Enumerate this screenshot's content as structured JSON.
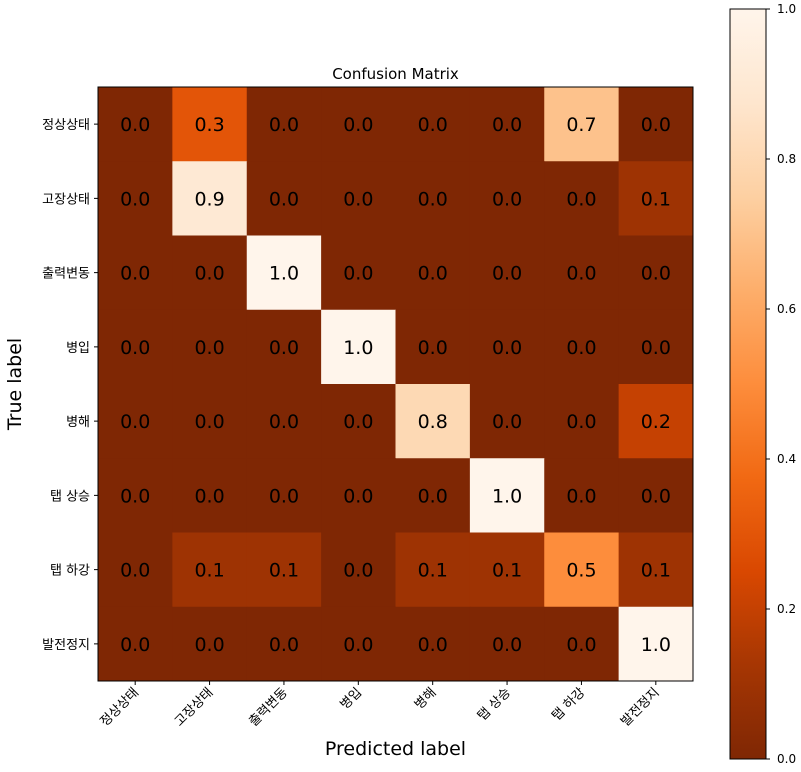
{
  "chart_data": {
    "type": "heatmap",
    "title": "Confusion Matrix",
    "xlabel": "Predicted label",
    "ylabel": "True label",
    "row_labels": [
      "정상상태",
      "고장상태",
      "출력변동",
      "병입",
      "병해",
      "탭 상승",
      "탭 하강",
      "발전정지"
    ],
    "col_labels": [
      "정상상태",
      "고장상태",
      "출력변동",
      "병입",
      "병해",
      "탭 상승",
      "탭 하강",
      "발전정지"
    ],
    "values": [
      [
        0.0,
        0.3,
        0.0,
        0.0,
        0.0,
        0.0,
        0.7,
        0.0
      ],
      [
        0.0,
        0.9,
        0.0,
        0.0,
        0.0,
        0.0,
        0.0,
        0.1
      ],
      [
        0.0,
        0.0,
        1.0,
        0.0,
        0.0,
        0.0,
        0.0,
        0.0
      ],
      [
        0.0,
        0.0,
        0.0,
        1.0,
        0.0,
        0.0,
        0.0,
        0.0
      ],
      [
        0.0,
        0.0,
        0.0,
        0.0,
        0.8,
        0.0,
        0.0,
        0.2
      ],
      [
        0.0,
        0.0,
        0.0,
        0.0,
        0.0,
        1.0,
        0.0,
        0.0
      ],
      [
        0.0,
        0.1,
        0.1,
        0.0,
        0.1,
        0.1,
        0.5,
        0.1
      ],
      [
        0.0,
        0.0,
        0.0,
        0.0,
        0.0,
        0.0,
        0.0,
        1.0
      ]
    ],
    "colormap": "Oranges_r",
    "vmin": 0.0,
    "vmax": 1.0,
    "colorbar_ticks": [
      "0.0",
      "0.2",
      "0.4",
      "0.6",
      "0.8",
      "1.0"
    ]
  }
}
